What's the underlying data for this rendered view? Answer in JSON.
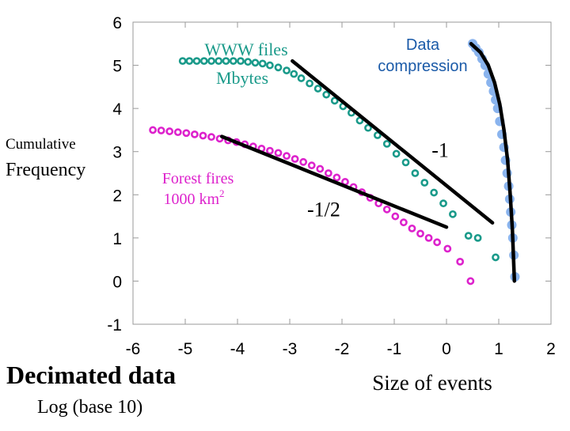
{
  "chart_data": {
    "type": "scatter",
    "xlabel": "Size of events",
    "ylabel_line1": "Cumulative",
    "ylabel_line2": "Frequency",
    "xlim": [
      -6,
      2
    ],
    "ylim": [
      -1,
      6
    ],
    "x_ticks": [
      -6,
      -5,
      -4,
      -3,
      -2,
      -1,
      0,
      1,
      2
    ],
    "x_tick_labels": [
      "-6",
      "-5",
      "-4",
      "-3",
      "-2",
      "-1",
      "0",
      "1",
      "2"
    ],
    "y_ticks": [
      -1,
      0,
      1,
      2,
      3,
      4,
      5,
      6
    ],
    "y_tick_labels": [
      "-1",
      "0",
      "1",
      "2",
      "3",
      "4",
      "5",
      "6"
    ],
    "bottom_title": "Decimated data",
    "bottom_subtitle": "Log (base 10)",
    "series": [
      {
        "name": "WWW files Mbytes",
        "label_line1": "WWW files",
        "label_line2": "Mbytes",
        "color": "#1a9a8a",
        "marker": "ring",
        "x": [
          -5.05,
          -4.92,
          -4.78,
          -4.64,
          -4.5,
          -4.36,
          -4.22,
          -4.08,
          -3.94,
          -3.8,
          -3.66,
          -3.52,
          -3.38,
          -3.22,
          -3.06,
          -2.92,
          -2.78,
          -2.62,
          -2.46,
          -2.3,
          -2.14,
          -1.98,
          -1.82,
          -1.66,
          -1.5,
          -1.32,
          -1.14,
          -0.96,
          -0.78,
          -0.6,
          -0.42,
          -0.24,
          -0.06,
          0.12,
          0.42,
          0.6,
          0.94
        ],
        "y": [
          5.1,
          5.1,
          5.1,
          5.1,
          5.1,
          5.1,
          5.1,
          5.1,
          5.1,
          5.08,
          5.06,
          5.04,
          5.0,
          4.95,
          4.88,
          4.8,
          4.7,
          4.58,
          4.46,
          4.32,
          4.18,
          4.05,
          3.9,
          3.72,
          3.55,
          3.38,
          3.18,
          2.95,
          2.75,
          2.5,
          2.28,
          2.05,
          1.8,
          1.55,
          1.05,
          1.0,
          0.55
        ]
      },
      {
        "name": "Forest fires 1000 km2",
        "label_line1": "Forest fires",
        "label_line2": "1000 km",
        "label_sup": "2",
        "color": "#dd22cc",
        "marker": "ring",
        "x": [
          -5.62,
          -5.46,
          -5.3,
          -5.14,
          -4.98,
          -4.82,
          -4.66,
          -4.5,
          -4.34,
          -4.18,
          -4.02,
          -3.86,
          -3.7,
          -3.54,
          -3.38,
          -3.22,
          -3.06,
          -2.9,
          -2.74,
          -2.58,
          -2.42,
          -2.26,
          -2.1,
          -1.94,
          -1.78,
          -1.62,
          -1.46,
          -1.3,
          -1.14,
          -0.98,
          -0.82,
          -0.66,
          -0.5,
          -0.34,
          -0.18,
          0.02,
          0.26,
          0.46
        ],
        "y": [
          3.5,
          3.49,
          3.47,
          3.45,
          3.43,
          3.4,
          3.37,
          3.34,
          3.3,
          3.26,
          3.22,
          3.17,
          3.12,
          3.07,
          3.02,
          2.97,
          2.9,
          2.83,
          2.76,
          2.68,
          2.6,
          2.5,
          2.4,
          2.3,
          2.18,
          2.06,
          1.93,
          1.8,
          1.66,
          1.5,
          1.36,
          1.22,
          1.1,
          1.0,
          0.9,
          0.75,
          0.45,
          0.0
        ]
      },
      {
        "name": "Data compression",
        "label_line1": "Data",
        "label_line2": "compression",
        "color": "#8ab4ee",
        "marker": "dot",
        "x": [
          0.5,
          0.56,
          0.62,
          0.68,
          0.74,
          0.8,
          0.85,
          0.9,
          0.94,
          0.98,
          1.02,
          1.06,
          1.1,
          1.13,
          1.16,
          1.19,
          1.21,
          1.23,
          1.25,
          1.27,
          1.29,
          1.31
        ],
        "y": [
          5.5,
          5.4,
          5.3,
          5.15,
          5.0,
          4.8,
          4.6,
          4.4,
          4.2,
          4.0,
          3.7,
          3.4,
          3.1,
          2.8,
          2.5,
          2.2,
          1.9,
          1.6,
          1.3,
          1.0,
          0.6,
          0.1
        ]
      }
    ],
    "fit_lines": [
      {
        "name": "slope -1 fit",
        "x": [
          -2.95,
          0.88
        ],
        "y": [
          5.1,
          1.35
        ]
      },
      {
        "name": "slope -1/2 fit",
        "x": [
          -4.3,
          0.0
        ],
        "y": [
          3.35,
          1.25
        ]
      }
    ],
    "fit_curve": {
      "name": "data compression fit",
      "x": [
        0.47,
        0.65,
        0.8,
        0.92,
        1.02,
        1.1,
        1.17,
        1.22,
        1.26,
        1.3
      ],
      "y": [
        5.5,
        5.3,
        5.0,
        4.6,
        4.1,
        3.5,
        2.8,
        2.0,
        1.2,
        0.0
      ]
    },
    "slope_labels": [
      {
        "text": "-1",
        "x": -0.12,
        "y": 2.88
      },
      {
        "text": "-1/2",
        "x": -2.35,
        "y": 1.5
      }
    ]
  }
}
